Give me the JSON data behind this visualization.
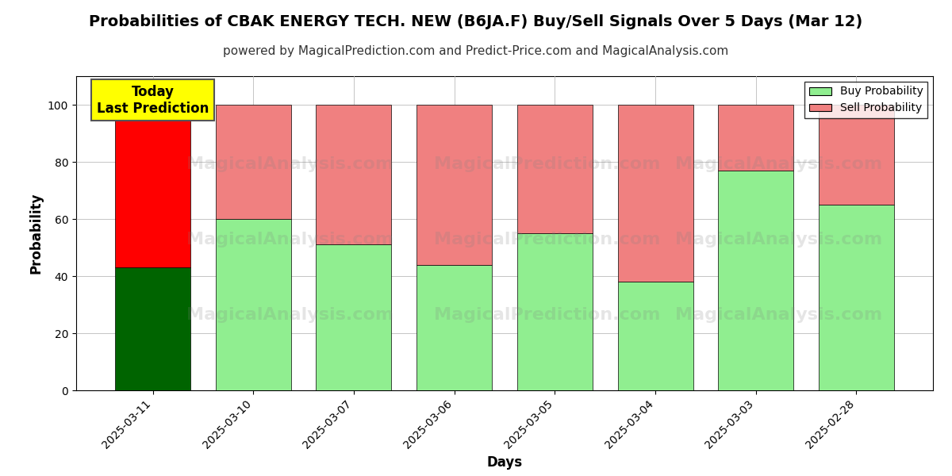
{
  "title": "Probabilities of CBAK ENERGY TECH. NEW (B6JA.F) Buy/Sell Signals Over 5 Days (Mar 12)",
  "subtitle": "powered by MagicalPrediction.com and Predict-Price.com and MagicalAnalysis.com",
  "xlabel": "Days",
  "ylabel": "Probability",
  "categories": [
    "2025-03-11",
    "2025-03-10",
    "2025-03-07",
    "2025-03-06",
    "2025-03-05",
    "2025-03-04",
    "2025-03-03",
    "2025-02-28"
  ],
  "buy_values": [
    43,
    60,
    51,
    44,
    55,
    38,
    77,
    65
  ],
  "sell_values": [
    57,
    40,
    49,
    56,
    45,
    62,
    23,
    35
  ],
  "today_index": 0,
  "buy_color_today": "#006400",
  "sell_color_today": "#ff0000",
  "buy_color_normal": "#90ee90",
  "sell_color_normal": "#f08080",
  "today_label_bg": "#ffff00",
  "today_label_text": "Today\nLast Prediction",
  "legend_buy": "Buy Probability",
  "legend_sell": "Sell Probability",
  "ylim": [
    0,
    110
  ],
  "yticks": [
    0,
    20,
    40,
    60,
    80,
    100
  ],
  "dashed_line_y": 110,
  "background_color": "#ffffff",
  "grid_color": "#bbbbbb",
  "watermark1": "MagicalAnalysis.com",
  "watermark2": "MagicalPrediction.com",
  "bar_edge_color": "#000000",
  "bar_linewidth": 0.5,
  "title_fontsize": 14,
  "subtitle_fontsize": 11,
  "axis_label_fontsize": 12,
  "tick_fontsize": 10,
  "legend_fontsize": 10,
  "bar_width": 0.75
}
